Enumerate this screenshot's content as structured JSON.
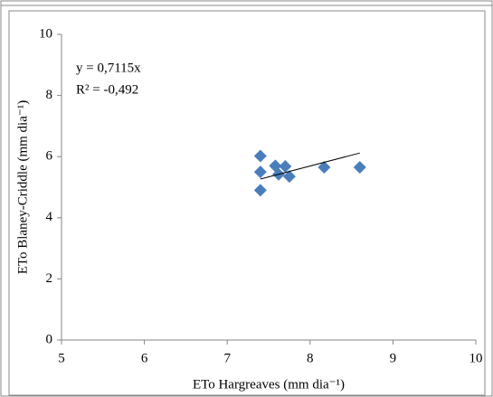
{
  "chart_data": {
    "type": "scatter",
    "x_label": "ETo Hargreaves (mm dia⁻¹)",
    "y_label": "ETo Blaney-Criddle (mm dia⁻¹)",
    "series": [
      {
        "color": "#4a7ebb",
        "x": [
          7.4,
          7.4,
          7.4,
          7.58,
          7.62,
          7.7,
          7.75,
          8.17,
          8.6
        ],
        "values": [
          6.02,
          5.5,
          4.9,
          5.7,
          5.42,
          5.68,
          5.35,
          5.65,
          5.65
        ]
      }
    ],
    "trendline": {
      "slope": 0.7115,
      "equation": "y = 0,7115x",
      "r2": "R² = -0,492",
      "color": "#000000"
    },
    "xlim": [
      5,
      10
    ],
    "xticks": [
      5,
      6,
      7,
      8,
      9,
      10
    ],
    "ylim": [
      0,
      10
    ],
    "yticks": [
      0,
      2,
      4,
      6,
      8,
      10
    ]
  }
}
